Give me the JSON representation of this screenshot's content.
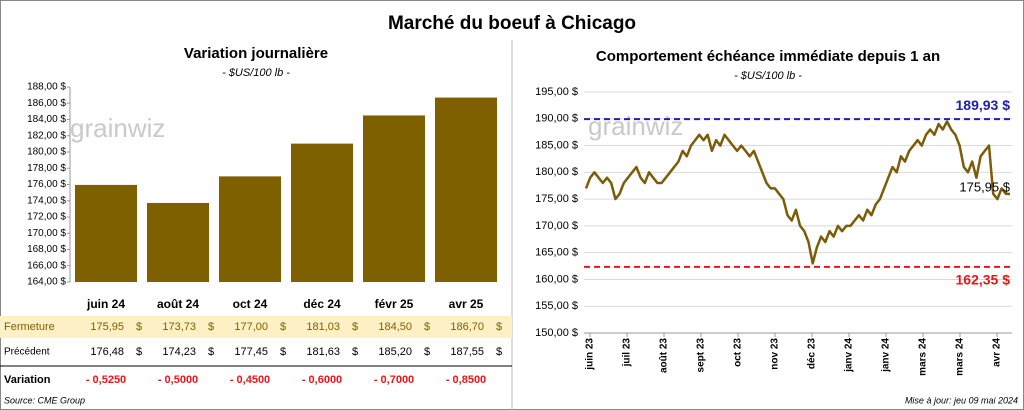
{
  "title": "Marché du boeuf à Chicago",
  "watermark": "grainwiz",
  "source": "Source: CME Group",
  "updated": "Mise à jour: jeu 09 mai 2024",
  "chart_data": [
    {
      "type": "bar",
      "title": "Variation journalière",
      "subtitle": "- $US/100 lb -",
      "categories": [
        "juin 24",
        "août 24",
        "oct 24",
        "déc 24",
        "févr 25",
        "avr 25"
      ],
      "values": [
        175.95,
        173.73,
        177.0,
        181.03,
        184.5,
        186.7
      ],
      "color": "#7f6000",
      "ylim": [
        164,
        188
      ],
      "yticks": [
        {
          "value": 164,
          "label": "164,00 $"
        },
        {
          "value": 166,
          "label": "166,00 $"
        },
        {
          "value": 168,
          "label": "168,00 $"
        },
        {
          "value": 170,
          "label": "170,00 $"
        },
        {
          "value": 172,
          "label": "172,00 $"
        },
        {
          "value": 174,
          "label": "174,00 $"
        },
        {
          "value": 176,
          "label": "176,00 $"
        },
        {
          "value": 178,
          "label": "178,00 $"
        },
        {
          "value": 180,
          "label": "180,00 $"
        },
        {
          "value": 182,
          "label": "182,00 $"
        },
        {
          "value": 184,
          "label": "184,00 $"
        },
        {
          "value": 186,
          "label": "186,00 $"
        },
        {
          "value": 188,
          "label": "188,00 $"
        }
      ],
      "grid": false
    },
    {
      "type": "line",
      "title": "Comportement  échéance immédiate depuis 1 an",
      "subtitle": "- $US/100 lb -",
      "xticks": [
        "juin 23",
        "juil 23",
        "août 23",
        "sept 23",
        "oct 23",
        "nov 23",
        "déc 23",
        "janv 24",
        "janv 24",
        "mars 24",
        "mars 24",
        "avr 24"
      ],
      "values": [
        177,
        179,
        180,
        179,
        178,
        179,
        178,
        175,
        176,
        178,
        179,
        180,
        181,
        179,
        178,
        180,
        179,
        178,
        178,
        179,
        180,
        181,
        182,
        184,
        183,
        185,
        186,
        187,
        186,
        187,
        184,
        186,
        185,
        187,
        186,
        185,
        184,
        185,
        184,
        183,
        184,
        182,
        180,
        178,
        177,
        177,
        176,
        175,
        172,
        171,
        173,
        170,
        169,
        167,
        163,
        166,
        168,
        167,
        169,
        168,
        170,
        169,
        170,
        170,
        171,
        172,
        171,
        173,
        172,
        174,
        175,
        177,
        179,
        181,
        180,
        183,
        182,
        184,
        185,
        186,
        185,
        187,
        188,
        187,
        189,
        188,
        189.5,
        188,
        187,
        185,
        181,
        180,
        182,
        179,
        183,
        184,
        185,
        176,
        175,
        177,
        176,
        175.95
      ],
      "color": "#7b5c08",
      "ylim": [
        150,
        195
      ],
      "yticks": [
        {
          "value": 150,
          "label": "150,00 $"
        },
        {
          "value": 155,
          "label": "155,00 $"
        },
        {
          "value": 160,
          "label": "160,00 $"
        },
        {
          "value": 165,
          "label": "165,00 $"
        },
        {
          "value": 170,
          "label": "170,00 $"
        },
        {
          "value": 175,
          "label": "175,00 $"
        },
        {
          "value": 180,
          "label": "180,00 $"
        },
        {
          "value": 185,
          "label": "185,00 $"
        },
        {
          "value": 190,
          "label": "190,00 $"
        },
        {
          "value": 195,
          "label": "195,00 $"
        }
      ],
      "grid": true,
      "reference_lines": [
        {
          "value": 189.93,
          "label": "189,93 $",
          "color": "#2020a8"
        },
        {
          "value": 162.35,
          "label": "162,35 $",
          "color": "#e8161b"
        }
      ],
      "end_label": {
        "value": 175.95,
        "label": "175,95 $"
      }
    }
  ],
  "table": {
    "unit": "$",
    "rows": [
      {
        "label": "Fermeture",
        "cells": [
          "175,95",
          "173,73",
          "177,00",
          "181,03",
          "184,50",
          "186,70"
        ]
      },
      {
        "label": "Précédent",
        "cells": [
          "176,48",
          "174,23",
          "177,45",
          "181,63",
          "185,20",
          "187,55"
        ]
      },
      {
        "label": "Variation",
        "cells": [
          "- 0,5250",
          "- 0,5000",
          "- 0,4500",
          "- 0,6000",
          "- 0,7000",
          "- 0,8500"
        ]
      }
    ]
  }
}
